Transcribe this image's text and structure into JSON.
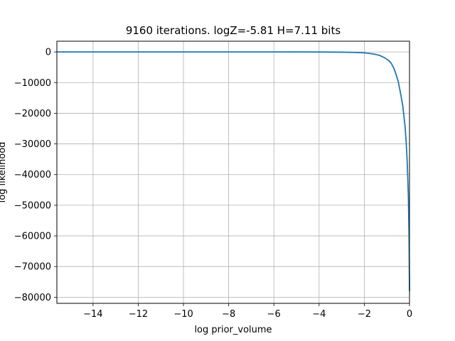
{
  "chart_data": {
    "type": "line",
    "title": "9160 iterations. logZ=-5.81 H=7.11 bits",
    "xlabel": "log prior_volume",
    "ylabel": "log likelihood",
    "xlim": [
      -15.6,
      0
    ],
    "ylim": [
      -82000,
      3500
    ],
    "xticks": [
      -14,
      -12,
      -10,
      -8,
      -6,
      -4,
      -2,
      0
    ],
    "xtick_labels": [
      "−14",
      "−12",
      "−10",
      "−8",
      "−6",
      "−4",
      "−2",
      "0"
    ],
    "yticks": [
      0,
      -10000,
      -20000,
      -30000,
      -40000,
      -50000,
      -60000,
      -70000,
      -80000
    ],
    "ytick_labels": [
      "0",
      "−10000",
      "−20000",
      "−30000",
      "−40000",
      "−50000",
      "−60000",
      "−70000",
      "−80000"
    ],
    "grid": true,
    "line_color": "#1f77b4",
    "series": [
      {
        "x": [
          -15.6,
          -14,
          -12,
          -10,
          -8,
          -6,
          -4,
          -3,
          -2.5,
          -2,
          -1.7,
          -1.5,
          -1.3,
          -1.1,
          -0.9,
          -0.8,
          -0.7,
          -0.6,
          -0.5,
          -0.4,
          -0.3,
          -0.2,
          -0.15,
          -0.1,
          -0.05,
          -0.02,
          0
        ],
        "y": [
          0,
          0,
          0,
          0,
          0,
          0,
          -20,
          -80,
          -150,
          -300,
          -550,
          -800,
          -1200,
          -1900,
          -2900,
          -3800,
          -5200,
          -7200,
          -9600,
          -13300,
          -17500,
          -24000,
          -29000,
          -36000,
          -47000,
          -60000,
          -78000
        ]
      }
    ]
  }
}
